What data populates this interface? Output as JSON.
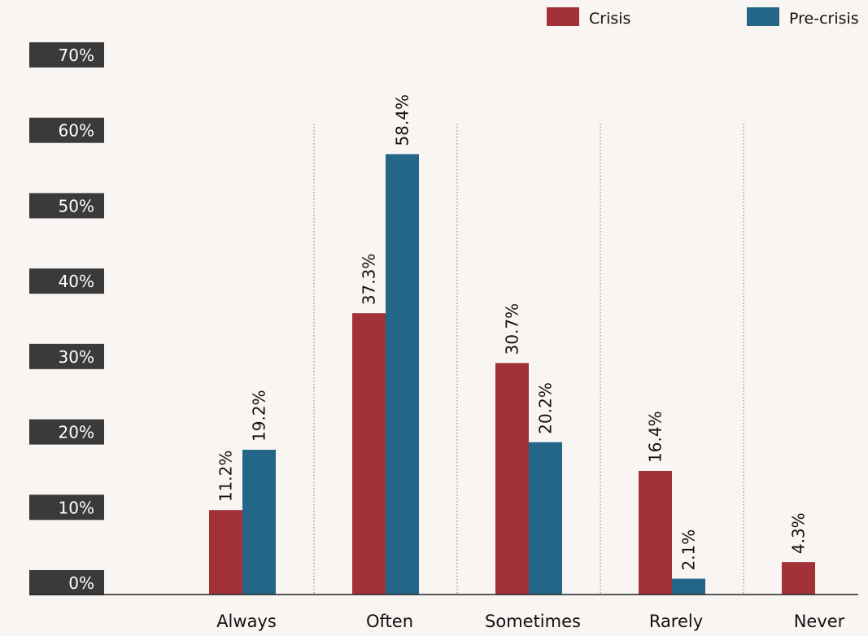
{
  "chart_data": {
    "type": "bar",
    "title": "",
    "xlabel": "",
    "ylabel": "",
    "categories": [
      "Always",
      "Often",
      "Sometimes",
      "Rarely",
      "Never"
    ],
    "series": [
      {
        "name": "Crisis",
        "color": "#a23238",
        "values": [
          11.2,
          37.3,
          30.7,
          16.4,
          4.3
        ]
      },
      {
        "name": "Pre-crisis",
        "color": "#236688",
        "values": [
          19.2,
          58.4,
          20.2,
          2.1,
          null
        ]
      }
    ],
    "data_labels": {
      "series_0": [
        "11.2%",
        "37.3%",
        "30.7%",
        "16.4%",
        "4.3%"
      ],
      "series_1": [
        "19.2%",
        "58.4%",
        "20.2%",
        "2.1%",
        ""
      ]
    },
    "ylim": [
      0,
      70
    ],
    "yticks": [
      0,
      10,
      20,
      30,
      40,
      50,
      60,
      70
    ],
    "ytick_labels": [
      "0%",
      "10%",
      "20%",
      "30%",
      "40%",
      "50%",
      "60%",
      "70%"
    ],
    "legend_position": "top-right",
    "grid": "dotted vertical separators between categories",
    "tick_label_style": "white text on dark gray boxes",
    "tick_box_color": "#3a3a3a"
  }
}
